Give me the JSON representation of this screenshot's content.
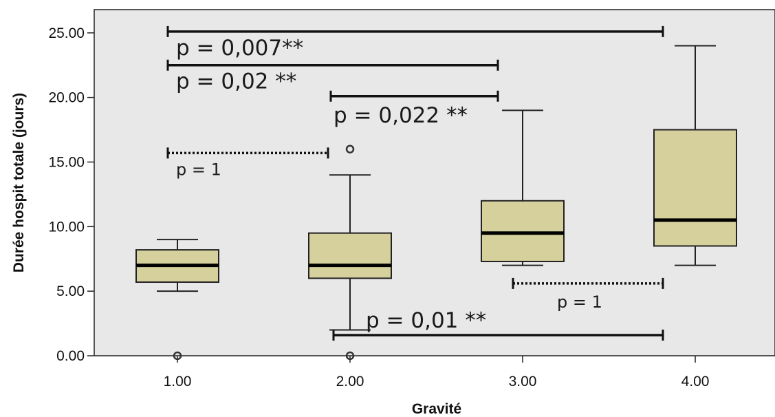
{
  "chart_data": {
    "type": "box",
    "xlabel": "Gravité",
    "ylabel": "Durée hospit totale (jours)",
    "ylim": [
      0,
      26.8
    ],
    "y_ticks": [
      "0.00",
      "5.00",
      "10.00",
      "15.00",
      "20.00",
      "25.00"
    ],
    "y_tick_values": [
      0,
      5,
      10,
      15,
      20,
      25
    ],
    "grid": false,
    "background": "#e8e8e8",
    "box_color": "#d6d19c",
    "categories": [
      "1.00",
      "2.00",
      "3.00",
      "4.00"
    ],
    "boxes": [
      {
        "category": "1.00",
        "whisker_low": 5.0,
        "q1": 5.7,
        "median": 7.0,
        "q3": 8.2,
        "whisker_high": 9.0,
        "outliers": [
          0
        ]
      },
      {
        "category": "2.00",
        "whisker_low": 2.0,
        "q1": 6.0,
        "median": 7.0,
        "q3": 9.5,
        "whisker_high": 14.0,
        "outliers": [
          16,
          0
        ]
      },
      {
        "category": "3.00",
        "whisker_low": 7.0,
        "q1": 7.3,
        "median": 9.5,
        "q3": 12.0,
        "whisker_high": 19.0,
        "outliers": []
      },
      {
        "category": "4.00",
        "whisker_low": 7.0,
        "q1": 8.5,
        "median": 10.5,
        "q3": 17.5,
        "whisker_high": 24.0,
        "outliers": []
      }
    ],
    "comparisons": [
      {
        "from": 1,
        "to": 4,
        "y": 25.1,
        "label": "p = 0,007**",
        "style": "solid"
      },
      {
        "from": 1,
        "to": 3,
        "y": 22.5,
        "label": "p = 0,02 **",
        "style": "solid"
      },
      {
        "from": 2,
        "to": 3,
        "y": 20.1,
        "label": "p = 0,022 **",
        "style": "solid"
      },
      {
        "from": 1,
        "to": 2,
        "y": 15.7,
        "label": "p = 1",
        "style": "dotted"
      },
      {
        "from": 3,
        "to": 4,
        "y": 5.6,
        "label": "p = 1",
        "style": "dotted"
      },
      {
        "from": 2,
        "to": 4,
        "y": 1.6,
        "label": "p = 0,01 **",
        "style": "solid"
      }
    ]
  }
}
